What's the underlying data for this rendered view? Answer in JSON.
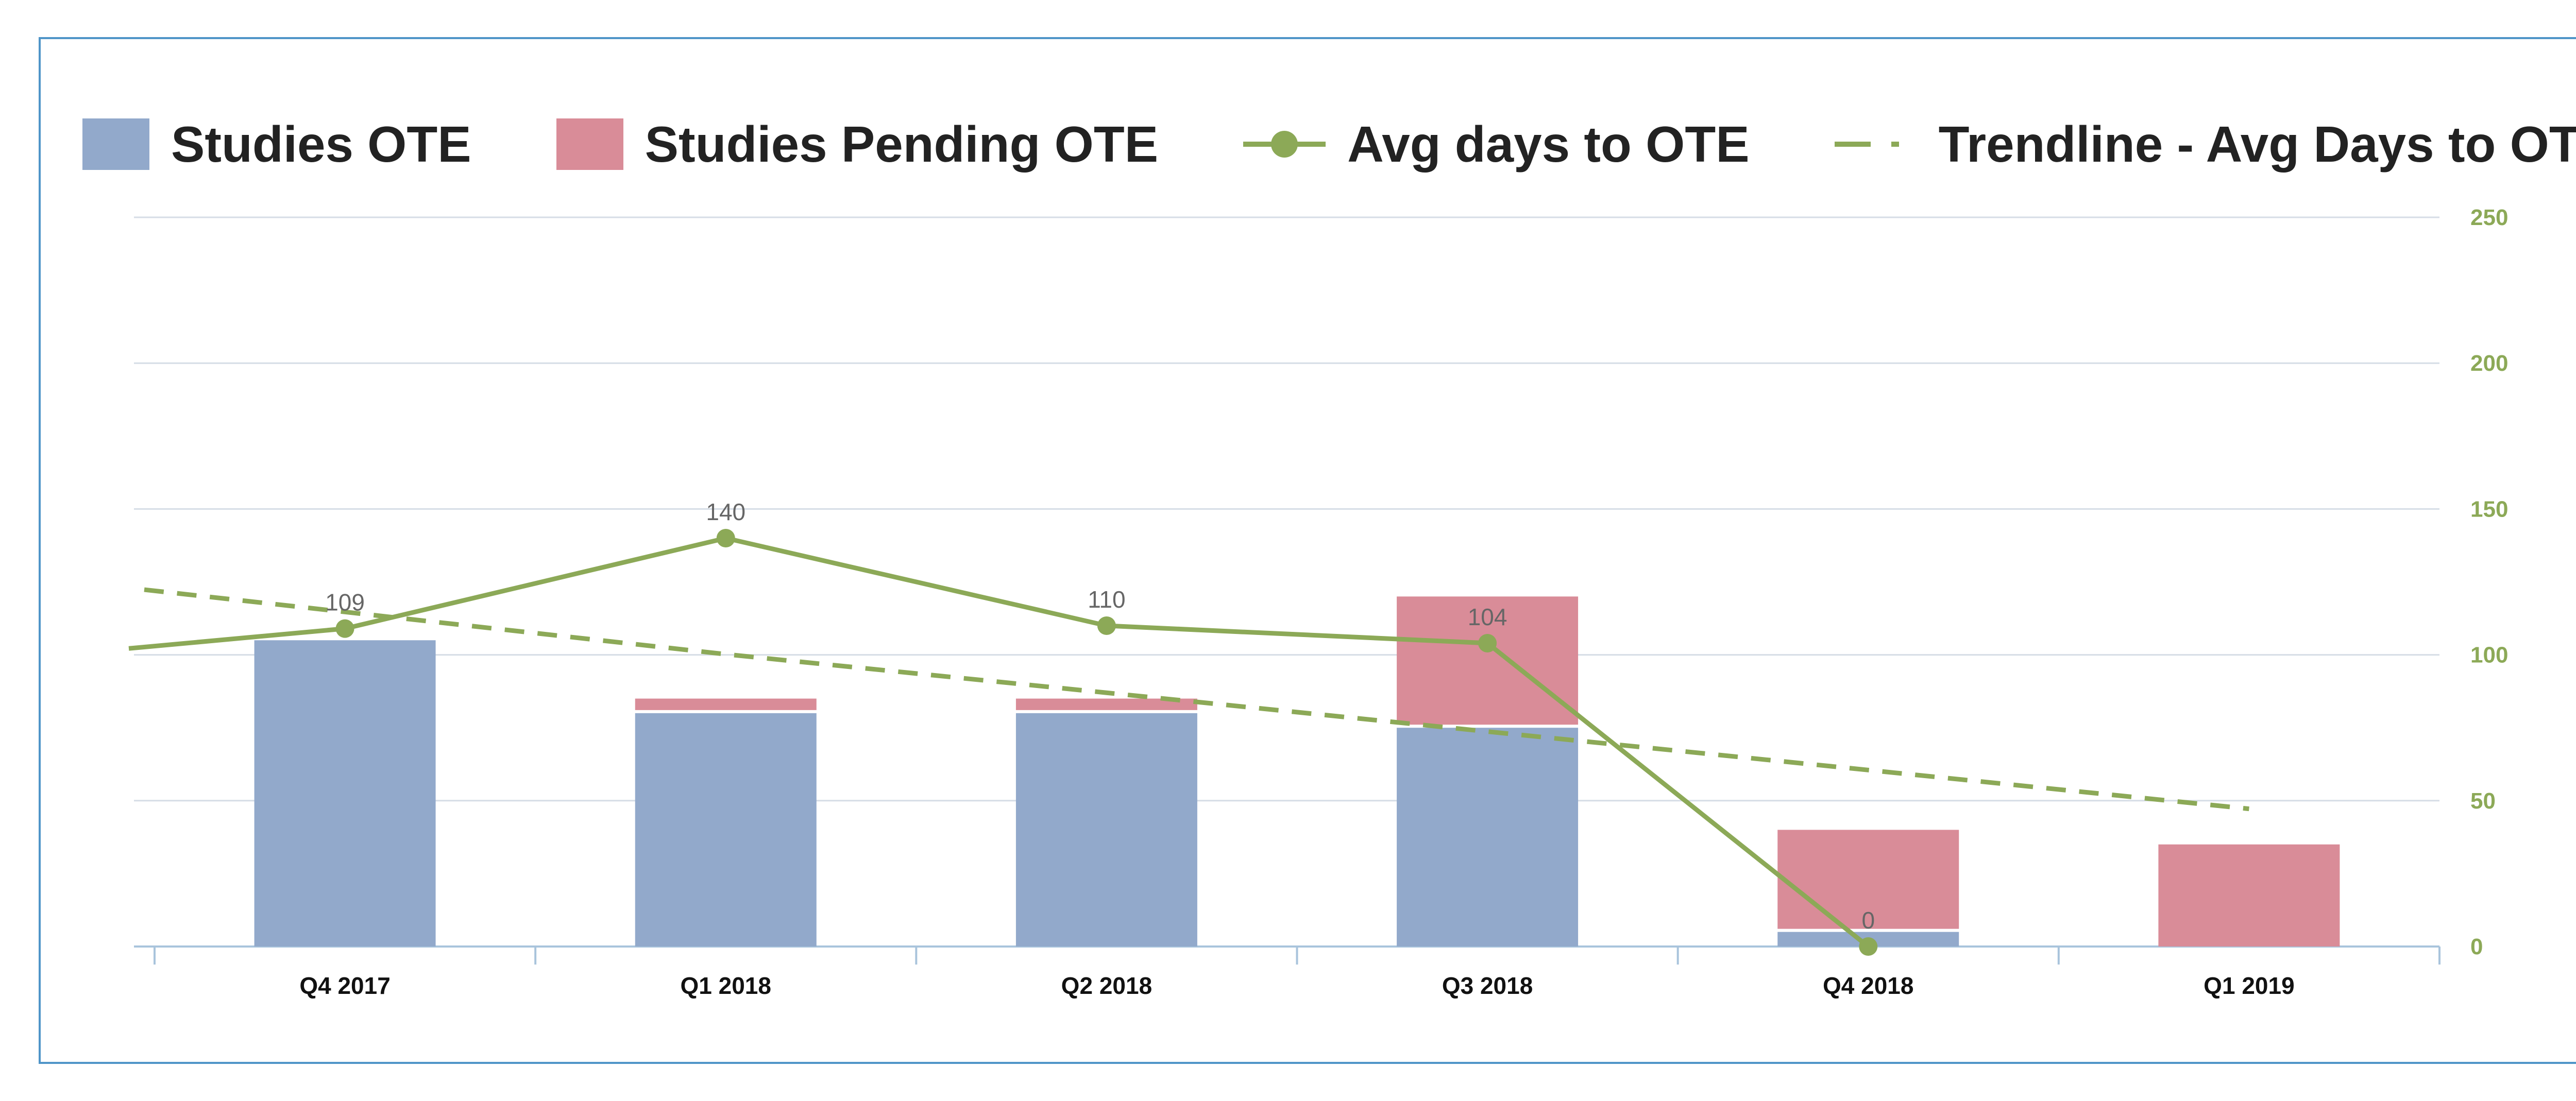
{
  "chart_data": {
    "type": "bar",
    "categories": [
      "Q4 2017",
      "Q1 2018",
      "Q2 2018",
      "Q3 2018",
      "Q4 2018",
      "Q1 2019"
    ],
    "series": [
      {
        "name": "Studies OTE",
        "type": "bar",
        "stacked": true,
        "axis": "left",
        "color": "#92a9cb",
        "values": [
          105,
          80,
          80,
          75,
          5,
          0
        ]
      },
      {
        "name": "Studies Pending OTE",
        "type": "bar",
        "stacked": true,
        "axis": "left",
        "color": "#d98c98",
        "values": [
          0,
          5,
          5,
          45,
          35,
          35
        ]
      },
      {
        "name": "Avg days to OTE",
        "type": "line",
        "axis": "right",
        "color": "#8ca957",
        "marker": "circle",
        "values": [
          109,
          140,
          110,
          104,
          0,
          null
        ],
        "data_labels": [
          "109",
          "140",
          "110",
          "104",
          "0",
          ""
        ]
      },
      {
        "name": "Trendline - Avg Days to OTE",
        "type": "line",
        "style": "dashed",
        "axis": "right",
        "color": "#8ca957",
        "values": [
          114.7,
          100.2,
          87.0,
          73.7,
          60.5,
          47.2
        ]
      }
    ],
    "y_right": {
      "ticks": [
        "0",
        "50",
        "100",
        "150",
        "200",
        "250"
      ],
      "ylim": [
        0,
        250
      ],
      "color": "#8ca957"
    },
    "y_left": {
      "ylim": [
        0,
        250
      ]
    },
    "grid": true,
    "legend": "top"
  },
  "legend": [
    {
      "label": "Studies OTE",
      "kind": "swatch",
      "color": "#92a9cb"
    },
    {
      "label": "Studies Pending OTE",
      "kind": "swatch",
      "color": "#d98c98"
    },
    {
      "label": "Avg days to OTE",
      "kind": "line-marker",
      "color": "#8ca957"
    },
    {
      "label": "Trendline - Avg Days to OTE",
      "kind": "dashed",
      "color": "#8ca957"
    }
  ]
}
